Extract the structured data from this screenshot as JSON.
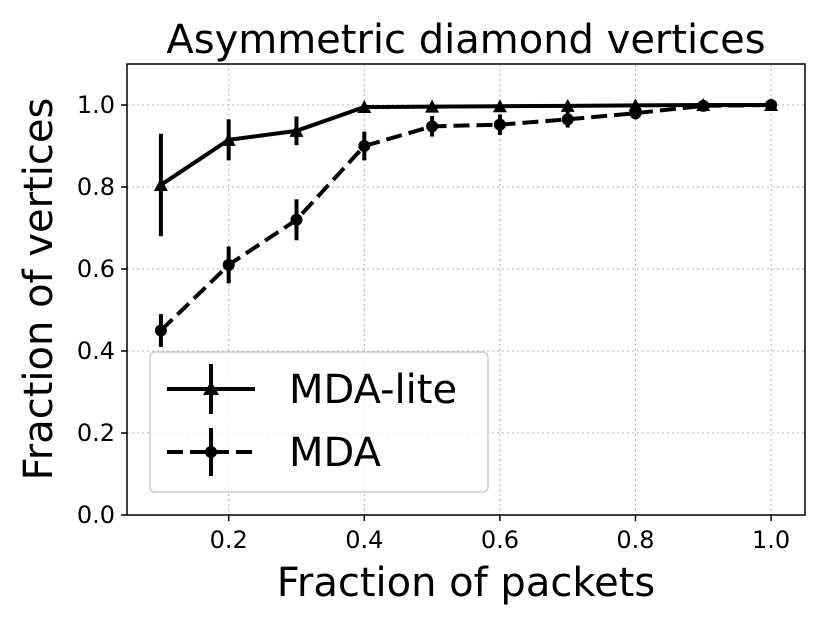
{
  "chart_data": {
    "type": "line",
    "title": "Asymmetric diamond vertices",
    "xlabel": "Fraction of packets",
    "ylabel": "Fraction of vertices",
    "xlim": [
      0.05,
      1.05
    ],
    "ylim": [
      0.0,
      1.1
    ],
    "grid": true,
    "legend_position": "lower-left",
    "x_ticks": [
      0.2,
      0.4,
      0.6,
      0.8,
      1.0
    ],
    "x_tick_labels": [
      "0.2",
      "0.4",
      "0.6",
      "0.8",
      "1.0"
    ],
    "y_ticks": [
      0.0,
      0.2,
      0.4,
      0.6,
      0.8,
      1.0
    ],
    "y_tick_labels": [
      "0.0",
      "0.2",
      "0.4",
      "0.6",
      "0.8",
      "1.0"
    ],
    "x": [
      0.1,
      0.2,
      0.3,
      0.4,
      0.5,
      0.6,
      0.7,
      0.8,
      0.9,
      1.0
    ],
    "series": [
      {
        "name": "MDA-lite",
        "linestyle": "solid",
        "marker": "triangle",
        "color": "#000000",
        "values": [
          0.805,
          0.915,
          0.937,
          0.995,
          0.996,
          0.997,
          0.998,
          0.999,
          1.0,
          1.0
        ],
        "errors": [
          0.125,
          0.05,
          0.035,
          0.005,
          0.005,
          0.004,
          0.004,
          0.003,
          0.002,
          0.001
        ]
      },
      {
        "name": "MDA",
        "linestyle": "dashed",
        "marker": "circle",
        "color": "#000000",
        "values": [
          0.45,
          0.61,
          0.72,
          0.9,
          0.948,
          0.952,
          0.965,
          0.98,
          0.998,
          1.0
        ],
        "errors": [
          0.04,
          0.045,
          0.05,
          0.035,
          0.025,
          0.025,
          0.02,
          0.015,
          0.005,
          0.002
        ]
      }
    ]
  }
}
